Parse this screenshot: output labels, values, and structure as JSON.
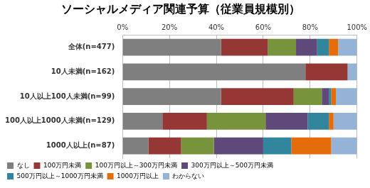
{
  "chart_data": {
    "type": "bar",
    "title": "ソーシャルメディア関連予算（従業員規模別）",
    "orientation": "horizontal",
    "stacked": true,
    "grid": true,
    "legend": "bottom",
    "categories": [
      "全体(n=477)",
      "10人未満(n=162)",
      "10人以上100人未満(n=99)",
      "100人以上1000人未満(n=129)",
      "1000人以上(n=87)"
    ],
    "xlim": [
      0,
      100
    ],
    "xticks": [
      {
        "value": 0,
        "label": "0%"
      },
      {
        "value": 20,
        "label": "20%"
      },
      {
        "value": 40,
        "label": "40%"
      },
      {
        "value": 60,
        "label": "60%"
      },
      {
        "value": 80,
        "label": "80%"
      },
      {
        "value": 100,
        "label": "100%"
      }
    ],
    "series": [
      {
        "name": "なし",
        "color": "#7f7f7f",
        "values": [
          42,
          78,
          42,
          17,
          11
        ]
      },
      {
        "name": "100万円未満",
        "color": "#953735",
        "values": [
          20,
          18,
          31,
          19,
          14
        ]
      },
      {
        "name": "100万円以上～300万円未満",
        "color": "#77933c",
        "values": [
          12,
          0,
          12,
          25,
          14
        ]
      },
      {
        "name": "300万円以上～500万円未満",
        "color": "#5f497a",
        "values": [
          9,
          0,
          3,
          18,
          21
        ]
      },
      {
        "name": "500万円以上～1000万円未満",
        "color": "#31859c",
        "values": [
          5,
          0,
          1,
          9,
          12
        ]
      },
      {
        "name": "1000万円以上",
        "color": "#e46c0a",
        "values": [
          4,
          0,
          2,
          2,
          17
        ]
      },
      {
        "name": "わからない",
        "color": "#95b3d7",
        "values": [
          8,
          4,
          9,
          10,
          11
        ]
      }
    ]
  }
}
